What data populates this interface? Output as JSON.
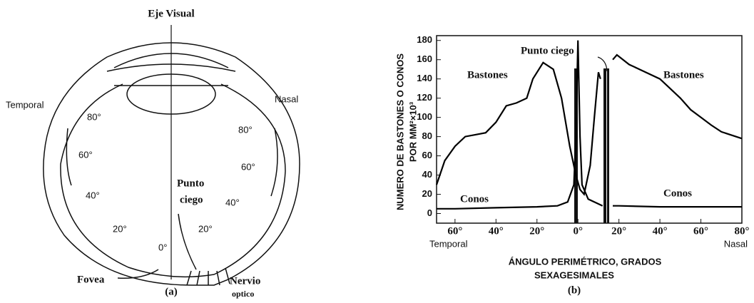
{
  "diagram": {
    "axis_label": "Eje Visual",
    "side_left": "Temporal",
    "side_right": "Nasal",
    "angles_left": [
      "80°",
      "60°",
      "40°",
      "20°",
      "0°"
    ],
    "angles_right": [
      "80°",
      "60°",
      "40°",
      "20°"
    ],
    "blind_spot": [
      "Punto",
      "ciego"
    ],
    "fovea": "Fovea",
    "optic_nerve": [
      "Nervio",
      "optico"
    ],
    "caption": "(a)"
  },
  "chart_data": {
    "type": "line",
    "y_label": [
      "NUMERO DE BASTONES O CONOS",
      "POR MM²×10³"
    ],
    "x_label": [
      "ÁNGULO PERIMÉTRICO, GRADOS",
      "SEXAGESIMALES"
    ],
    "x_end_labels": [
      "Temporal",
      "Nasal"
    ],
    "caption": "(b)",
    "annotations": [
      "Bastones",
      "Bastones",
      "Punto ciego",
      "Conos",
      "Conos"
    ],
    "xlim": [
      -69,
      80
    ],
    "ylim": [
      -10,
      185
    ],
    "xticks": [
      {
        "value": -60,
        "label": "60°"
      },
      {
        "value": -40,
        "label": "40°"
      },
      {
        "value": -20,
        "label": "20°"
      },
      {
        "value": 0,
        "label": "0°"
      },
      {
        "value": 20,
        "label": "20°"
      },
      {
        "value": 40,
        "label": "40°"
      },
      {
        "value": 60,
        "label": "60°"
      },
      {
        "value": 80,
        "label": "80°"
      }
    ],
    "yticks": [
      0,
      20,
      40,
      60,
      80,
      100,
      120,
      140,
      160,
      180
    ],
    "series": [
      {
        "name": "Bastones",
        "color": "#000000",
        "x": [
          -69,
          -65,
          -60,
          -55,
          -50,
          -45,
          -40,
          -35,
          -30,
          -25,
          -22,
          -17,
          -12,
          -8,
          -4,
          -1,
          1,
          3,
          6,
          8,
          10,
          11,
          14,
          17,
          19,
          25,
          30,
          40,
          45,
          50,
          55,
          60,
          65,
          70,
          80
        ],
        "values": [
          30,
          55,
          70,
          80,
          82,
          84,
          95,
          112,
          115,
          120,
          140,
          157,
          150,
          120,
          70,
          40,
          25,
          20,
          50,
          100,
          147,
          140,
          null,
          160,
          165,
          155,
          150,
          140,
          130,
          120,
          108,
          100,
          92,
          85,
          78
        ]
      },
      {
        "name": "Conos",
        "color": "#000000",
        "x": [
          -69,
          -60,
          -40,
          -20,
          -10,
          -5,
          -2,
          -1,
          0,
          1,
          2,
          5,
          10,
          12,
          14,
          17,
          20,
          40,
          60,
          80
        ],
        "values": [
          5,
          5,
          6,
          7,
          8,
          12,
          30,
          80,
          180,
          80,
          30,
          15,
          10,
          8,
          null,
          8,
          8,
          7,
          7,
          7
        ]
      }
    ]
  }
}
